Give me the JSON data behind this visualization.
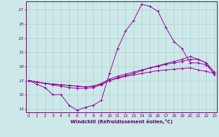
{
  "xlabel": "Windchill (Refroidissement éolien,°C)",
  "background_color": "#cce8e8",
  "grid_color": "#aacccc",
  "line_color": "#990099",
  "x_hours": [
    0,
    1,
    2,
    3,
    4,
    5,
    6,
    7,
    8,
    9,
    10,
    11,
    12,
    13,
    14,
    15,
    16,
    17,
    18,
    19,
    20,
    21,
    22,
    23
  ],
  "series": [
    [
      17.0,
      16.5,
      16.0,
      15.0,
      15.0,
      13.5,
      12.8,
      13.2,
      13.5,
      14.2,
      18.0,
      21.5,
      24.0,
      25.5,
      27.8,
      27.5,
      26.8,
      24.5,
      22.5,
      21.5,
      19.5,
      19.5,
      19.2,
      18.0
    ],
    [
      17.0,
      16.8,
      16.6,
      16.5,
      16.4,
      16.3,
      16.2,
      16.1,
      16.2,
      16.5,
      17.0,
      17.3,
      17.6,
      17.8,
      18.0,
      18.2,
      18.4,
      18.5,
      18.6,
      18.7,
      18.8,
      18.5,
      18.3,
      18.0
    ],
    [
      17.0,
      16.8,
      16.6,
      16.5,
      16.4,
      16.3,
      16.2,
      16.1,
      16.2,
      16.6,
      17.2,
      17.6,
      17.9,
      18.2,
      18.5,
      18.8,
      19.0,
      19.3,
      19.5,
      19.7,
      20.0,
      20.0,
      19.5,
      18.2
    ],
    [
      17.0,
      16.8,
      16.6,
      16.4,
      16.2,
      16.0,
      15.9,
      15.9,
      16.0,
      16.4,
      17.0,
      17.4,
      17.7,
      18.0,
      18.4,
      18.8,
      19.1,
      19.4,
      19.7,
      20.0,
      20.4,
      20.0,
      19.5,
      17.8
    ]
  ],
  "xlim": [
    -0.3,
    23.3
  ],
  "ylim": [
    12.5,
    28.2
  ],
  "yticks": [
    13,
    15,
    17,
    19,
    21,
    23,
    25,
    27
  ],
  "xticks": [
    0,
    1,
    2,
    3,
    4,
    5,
    6,
    7,
    8,
    9,
    10,
    11,
    12,
    13,
    14,
    15,
    16,
    17,
    18,
    19,
    20,
    21,
    22,
    23
  ]
}
